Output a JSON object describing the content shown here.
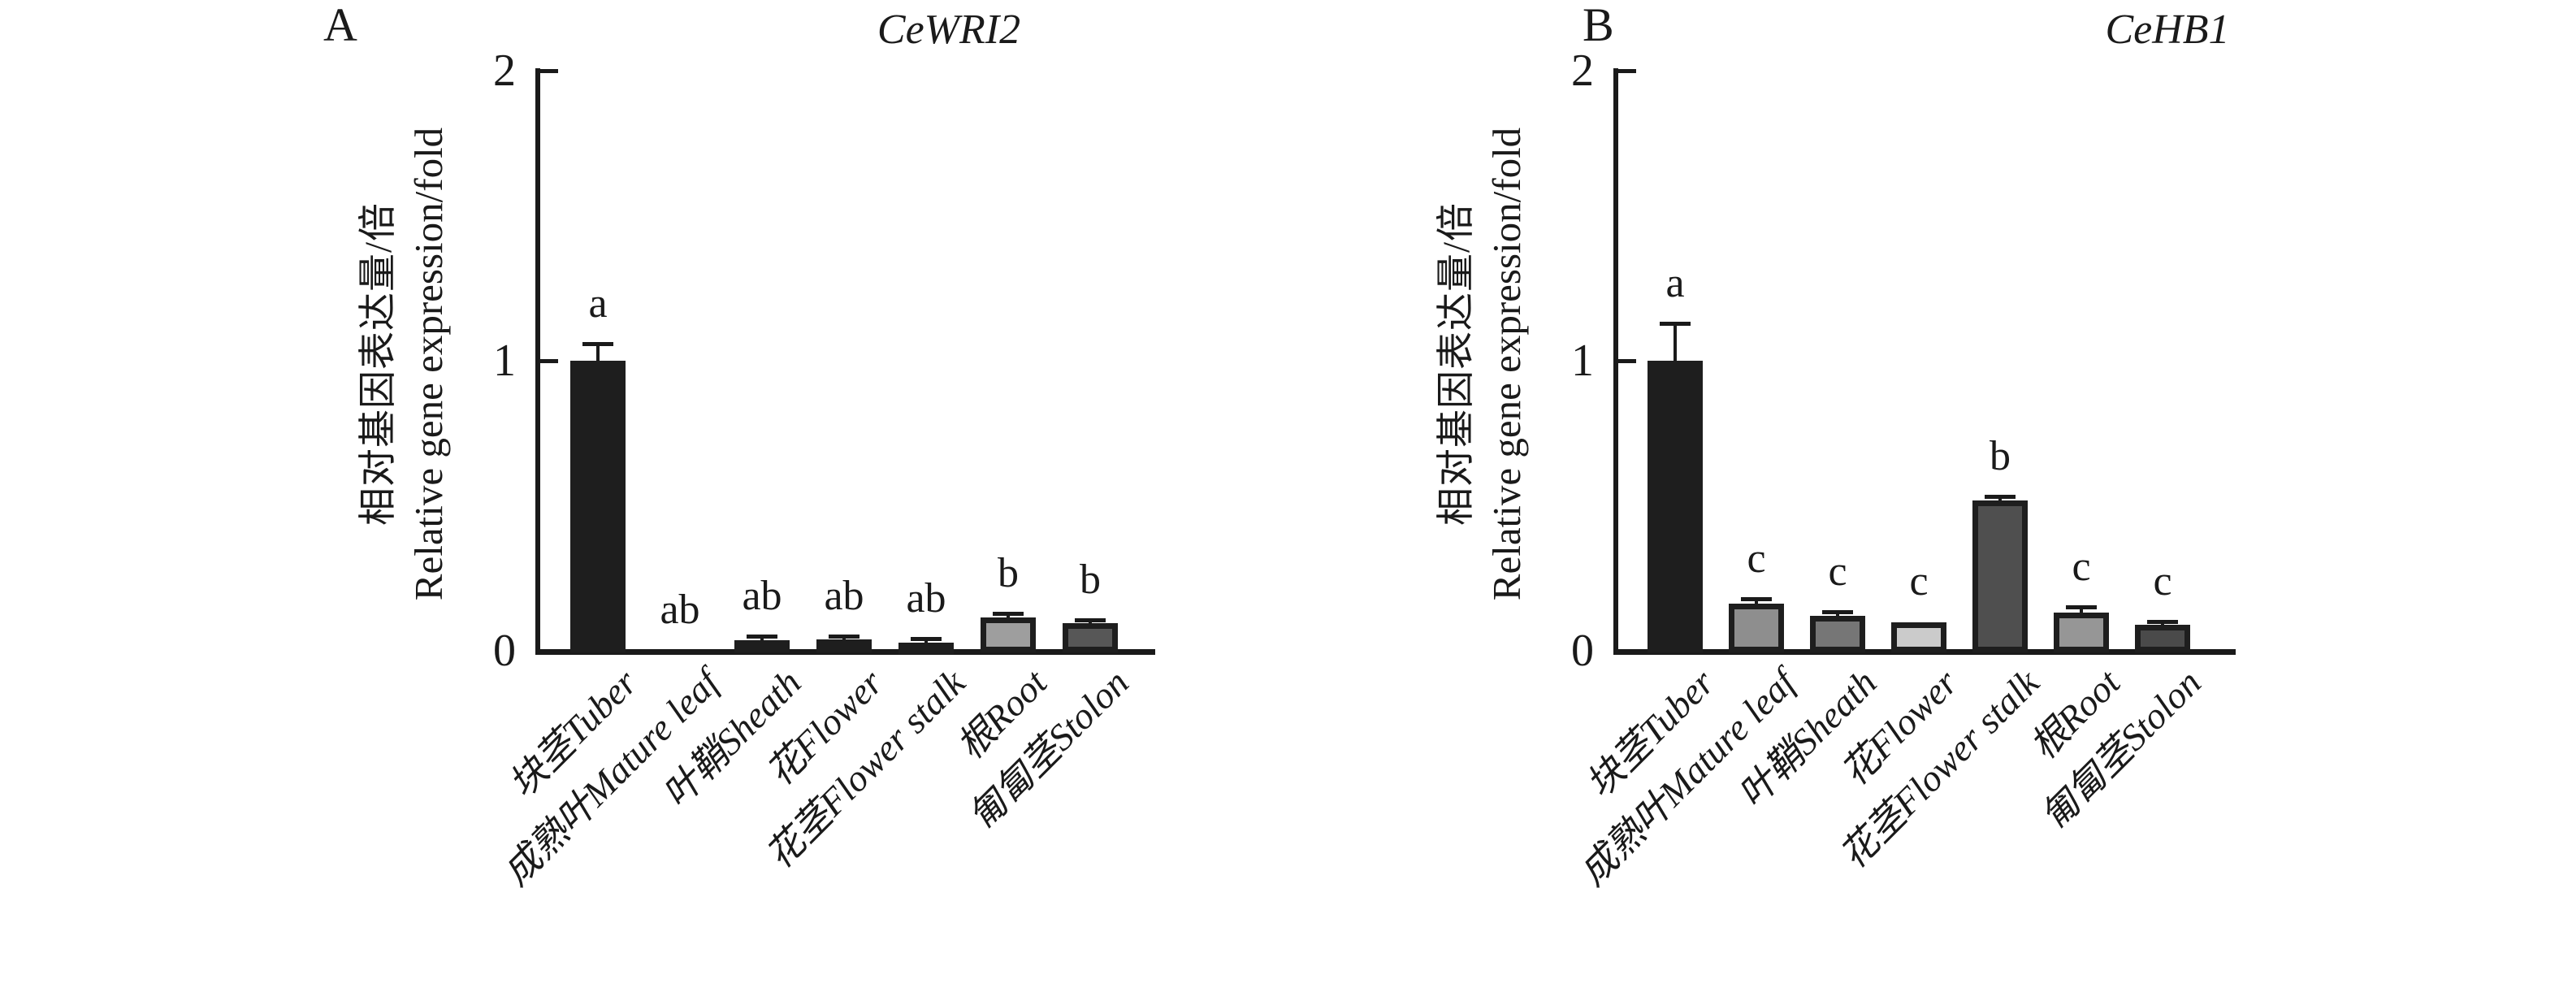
{
  "figure": {
    "background": "#ffffff",
    "ink_color": "#1a1a1a"
  },
  "chart_data": [
    {
      "type": "bar",
      "panel": "A",
      "title": "CeWRI2",
      "ylabel_cn": "相对基因表达量/倍",
      "ylabel_en": "Relative gene expression/fold",
      "ylim": [
        0,
        2
      ],
      "yticks": [
        0,
        1,
        2
      ],
      "ytick_labels": [
        "0",
        "1",
        "2"
      ],
      "grid": false,
      "legend": "none",
      "categories": [
        "块茎Tuber",
        "成熟叶Mature leaf",
        "叶鞘Sheath",
        "花Flower",
        "花茎Flower stalk",
        "根Root",
        "匍匐茎Stolon"
      ],
      "values": [
        1.0,
        0,
        0.036,
        0.038,
        0.028,
        0.115,
        0.095
      ],
      "errors": [
        0.055,
        0,
        0.01,
        0.008,
        0.012,
        0.012,
        0.008
      ],
      "sig_letters": [
        "a",
        "ab",
        "ab",
        "ab",
        "ab",
        "b",
        "b"
      ],
      "bar_fills": [
        "#1e1e1e",
        "#1e1e1e",
        "#1e1e1e",
        "#1e1e1e",
        "#1e1e1e",
        "#9e9e9e",
        "#575757"
      ]
    },
    {
      "type": "bar",
      "panel": "B",
      "title": "CeHB1",
      "ylabel_cn": "相对基因表达量/倍",
      "ylabel_en": "Relative gene expression/fold",
      "ylim": [
        0,
        2
      ],
      "yticks": [
        0,
        1,
        2
      ],
      "ytick_labels": [
        "0",
        "1",
        "2"
      ],
      "grid": false,
      "legend": "none",
      "categories": [
        "块茎Tuber",
        "成熟叶Mature leaf",
        "叶鞘Sheath",
        "花Flower",
        "花茎Flower stalk",
        "根Root",
        "匍匐茎Stolon"
      ],
      "values": [
        1.0,
        0.163,
        0.121,
        0.098,
        0.518,
        0.132,
        0.09
      ],
      "errors": [
        0.126,
        0.014,
        0.012,
        0,
        0.012,
        0.018,
        0.008
      ],
      "sig_letters": [
        "a",
        "c",
        "c",
        "c",
        "b",
        "c",
        "c"
      ],
      "bar_fills": [
        "#1e1e1e",
        "#8e8e8e",
        "#767676",
        "#cbcbcb",
        "#4f4f4f",
        "#969696",
        "#4a4a4a"
      ]
    }
  ]
}
